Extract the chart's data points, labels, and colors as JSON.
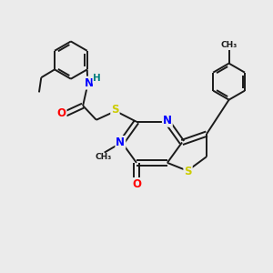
{
  "background_color": "#ebebeb",
  "bond_color": "#1a1a1a",
  "atom_colors": {
    "N": "#0000ff",
    "O": "#ff0000",
    "S": "#cccc00",
    "H": "#008080",
    "C": "#1a1a1a"
  },
  "figsize": [
    3.0,
    3.0
  ],
  "dpi": 100,
  "lw": 1.4,
  "fs": 8.5
}
